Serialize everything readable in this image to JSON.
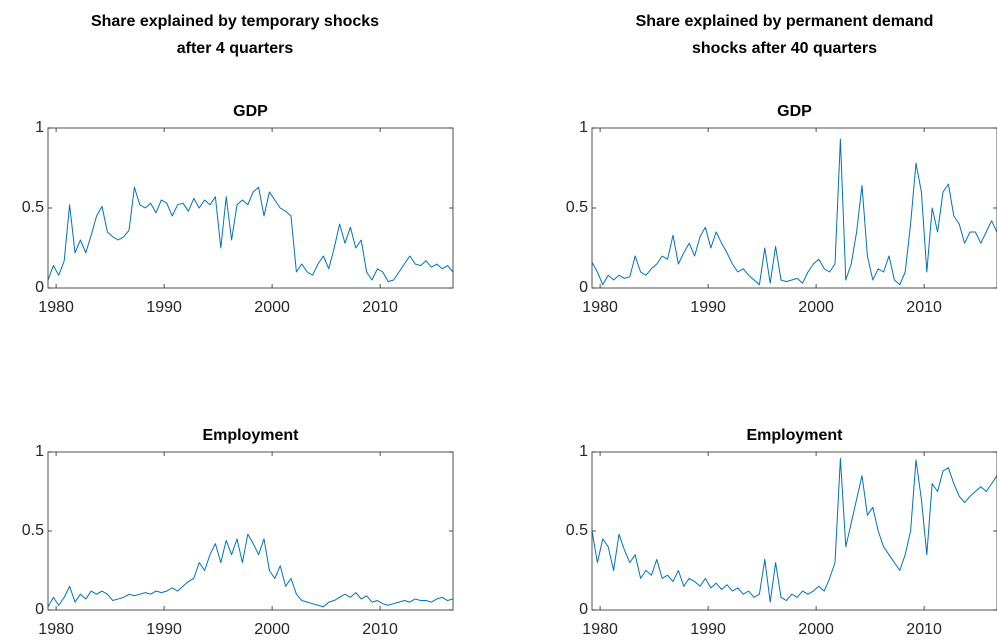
{
  "column_titles": [
    "Share explained by temporary shocks after 4 quarters",
    "Share explained by permanent demand shocks after 40 quarters"
  ],
  "chart_data": [
    {
      "type": "line",
      "title": "GDP",
      "x": [
        1979.25,
        1979.75,
        1980.25,
        1980.75,
        1981.25,
        1981.75,
        1982.25,
        1982.75,
        1983.25,
        1983.75,
        1984.25,
        1984.75,
        1985.25,
        1985.75,
        1986.25,
        1986.75,
        1987.25,
        1987.75,
        1988.25,
        1988.75,
        1989.25,
        1989.75,
        1990.25,
        1990.75,
        1991.25,
        1991.75,
        1992.25,
        1992.75,
        1993.25,
        1993.75,
        1994.25,
        1994.75,
        1995.25,
        1995.75,
        1996.25,
        1996.75,
        1997.25,
        1997.75,
        1998.25,
        1998.75,
        1999.25,
        1999.75,
        2000.25,
        2000.75,
        2001.25,
        2001.75,
        2002.25,
        2002.75,
        2003.25,
        2003.75,
        2004.25,
        2004.75,
        2005.25,
        2005.75,
        2006.25,
        2006.75,
        2007.25,
        2007.75,
        2008.25,
        2008.75,
        2009.25,
        2009.75,
        2010.25,
        2010.75,
        2011.25,
        2011.75,
        2012.25,
        2012.75,
        2013.25,
        2013.75,
        2014.25,
        2014.75,
        2015.25,
        2015.75,
        2016.25,
        2016.75
      ],
      "series": [
        {
          "color": "#0072bd",
          "values": [
            0.05,
            0.14,
            0.08,
            0.17,
            0.52,
            0.22,
            0.3,
            0.22,
            0.33,
            0.45,
            0.51,
            0.35,
            0.32,
            0.3,
            0.32,
            0.36,
            0.63,
            0.52,
            0.5,
            0.53,
            0.47,
            0.55,
            0.53,
            0.45,
            0.52,
            0.53,
            0.48,
            0.56,
            0.5,
            0.55,
            0.52,
            0.57,
            0.25,
            0.57,
            0.3,
            0.52,
            0.55,
            0.52,
            0.6,
            0.63,
            0.45,
            0.6,
            0.55,
            0.5,
            0.48,
            0.45,
            0.1,
            0.15,
            0.1,
            0.08,
            0.15,
            0.2,
            0.12,
            0.25,
            0.4,
            0.28,
            0.38,
            0.25,
            0.3,
            0.1,
            0.05,
            0.12,
            0.1,
            0.04,
            0.05,
            0.1,
            0.15,
            0.2,
            0.15,
            0.14,
            0.17,
            0.13,
            0.15,
            0.12,
            0.14,
            0.1
          ]
        }
      ],
      "xlim": [
        1979.25,
        2016.75
      ],
      "xticks": [
        1980,
        1990,
        2000,
        2010
      ],
      "ylim": [
        0,
        1
      ],
      "yticks": [
        0,
        0.5,
        1
      ]
    },
    {
      "type": "line",
      "title": "GDP",
      "x": [
        1979.25,
        1979.75,
        1980.25,
        1980.75,
        1981.25,
        1981.75,
        1982.25,
        1982.75,
        1983.25,
        1983.75,
        1984.25,
        1984.75,
        1985.25,
        1985.75,
        1986.25,
        1986.75,
        1987.25,
        1987.75,
        1988.25,
        1988.75,
        1989.25,
        1989.75,
        1990.25,
        1990.75,
        1991.25,
        1991.75,
        1992.25,
        1992.75,
        1993.25,
        1993.75,
        1994.25,
        1994.75,
        1995.25,
        1995.75,
        1996.25,
        1996.75,
        1997.25,
        1997.75,
        1998.25,
        1998.75,
        1999.25,
        1999.75,
        2000.25,
        2000.75,
        2001.25,
        2001.75,
        2002.25,
        2002.75,
        2003.25,
        2003.75,
        2004.25,
        2004.75,
        2005.25,
        2005.75,
        2006.25,
        2006.75,
        2007.25,
        2007.75,
        2008.25,
        2008.75,
        2009.25,
        2009.75,
        2010.25,
        2010.75,
        2011.25,
        2011.75,
        2012.25,
        2012.75,
        2013.25,
        2013.75,
        2014.25,
        2014.75,
        2015.25,
        2015.75,
        2016.25,
        2016.75
      ],
      "series": [
        {
          "color": "#0072bd",
          "values": [
            0.16,
            0.1,
            0.02,
            0.08,
            0.05,
            0.08,
            0.06,
            0.07,
            0.2,
            0.1,
            0.08,
            0.12,
            0.15,
            0.2,
            0.18,
            0.33,
            0.15,
            0.22,
            0.28,
            0.2,
            0.32,
            0.38,
            0.25,
            0.35,
            0.28,
            0.22,
            0.15,
            0.1,
            0.12,
            0.08,
            0.05,
            0.02,
            0.25,
            0.03,
            0.26,
            0.05,
            0.04,
            0.05,
            0.06,
            0.03,
            0.1,
            0.15,
            0.18,
            0.12,
            0.1,
            0.15,
            0.93,
            0.05,
            0.15,
            0.35,
            0.64,
            0.2,
            0.05,
            0.12,
            0.1,
            0.2,
            0.05,
            0.02,
            0.1,
            0.4,
            0.78,
            0.6,
            0.1,
            0.5,
            0.35,
            0.6,
            0.65,
            0.45,
            0.4,
            0.28,
            0.35,
            0.35,
            0.28,
            0.35,
            0.42,
            0.35
          ]
        }
      ],
      "xlim": [
        1979.25,
        2016.75
      ],
      "xticks": [
        1980,
        1990,
        2000,
        2010
      ],
      "ylim": [
        0,
        1
      ],
      "yticks": [
        0,
        0.5,
        1
      ]
    },
    {
      "type": "line",
      "title": "Employment",
      "x": [
        1979.25,
        1979.75,
        1980.25,
        1980.75,
        1981.25,
        1981.75,
        1982.25,
        1982.75,
        1983.25,
        1983.75,
        1984.25,
        1984.75,
        1985.25,
        1985.75,
        1986.25,
        1986.75,
        1987.25,
        1987.75,
        1988.25,
        1988.75,
        1989.25,
        1989.75,
        1990.25,
        1990.75,
        1991.25,
        1991.75,
        1992.25,
        1992.75,
        1993.25,
        1993.75,
        1994.25,
        1994.75,
        1995.25,
        1995.75,
        1996.25,
        1996.75,
        1997.25,
        1997.75,
        1998.25,
        1998.75,
        1999.25,
        1999.75,
        2000.25,
        2000.75,
        2001.25,
        2001.75,
        2002.25,
        2002.75,
        2003.25,
        2003.75,
        2004.25,
        2004.75,
        2005.25,
        2005.75,
        2006.25,
        2006.75,
        2007.25,
        2007.75,
        2008.25,
        2008.75,
        2009.25,
        2009.75,
        2010.25,
        2010.75,
        2011.25,
        2011.75,
        2012.25,
        2012.75,
        2013.25,
        2013.75,
        2014.25,
        2014.75,
        2015.25,
        2015.75,
        2016.25,
        2016.75
      ],
      "series": [
        {
          "color": "#0072bd",
          "values": [
            0.02,
            0.08,
            0.03,
            0.08,
            0.15,
            0.05,
            0.1,
            0.07,
            0.12,
            0.1,
            0.12,
            0.1,
            0.06,
            0.07,
            0.08,
            0.1,
            0.09,
            0.1,
            0.11,
            0.1,
            0.12,
            0.11,
            0.12,
            0.14,
            0.12,
            0.15,
            0.18,
            0.2,
            0.3,
            0.25,
            0.35,
            0.42,
            0.3,
            0.44,
            0.35,
            0.45,
            0.3,
            0.48,
            0.42,
            0.35,
            0.45,
            0.25,
            0.2,
            0.28,
            0.15,
            0.2,
            0.1,
            0.06,
            0.05,
            0.04,
            0.03,
            0.02,
            0.05,
            0.06,
            0.08,
            0.1,
            0.08,
            0.11,
            0.07,
            0.09,
            0.05,
            0.06,
            0.04,
            0.03,
            0.04,
            0.05,
            0.06,
            0.05,
            0.07,
            0.06,
            0.06,
            0.05,
            0.07,
            0.08,
            0.06,
            0.07
          ]
        }
      ],
      "xlim": [
        1979.25,
        2016.75
      ],
      "xticks": [
        1980,
        1990,
        2000,
        2010
      ],
      "ylim": [
        0,
        1
      ],
      "yticks": [
        0,
        0.5,
        1
      ]
    },
    {
      "type": "line",
      "title": "Employment",
      "x": [
        1979.25,
        1979.75,
        1980.25,
        1980.75,
        1981.25,
        1981.75,
        1982.25,
        1982.75,
        1983.25,
        1983.75,
        1984.25,
        1984.75,
        1985.25,
        1985.75,
        1986.25,
        1986.75,
        1987.25,
        1987.75,
        1988.25,
        1988.75,
        1989.25,
        1989.75,
        1990.25,
        1990.75,
        1991.25,
        1991.75,
        1992.25,
        1992.75,
        1993.25,
        1993.75,
        1994.25,
        1994.75,
        1995.25,
        1995.75,
        1996.25,
        1996.75,
        1997.25,
        1997.75,
        1998.25,
        1998.75,
        1999.25,
        1999.75,
        2000.25,
        2000.75,
        2001.25,
        2001.75,
        2002.25,
        2002.75,
        2003.25,
        2003.75,
        2004.25,
        2004.75,
        2005.25,
        2005.75,
        2006.25,
        2006.75,
        2007.25,
        2007.75,
        2008.25,
        2008.75,
        2009.25,
        2009.75,
        2010.25,
        2010.75,
        2011.25,
        2011.75,
        2012.25,
        2012.75,
        2013.25,
        2013.75,
        2014.25,
        2014.75,
        2015.25,
        2015.75,
        2016.25,
        2016.75
      ],
      "series": [
        {
          "color": "#0072bd",
          "values": [
            0.5,
            0.3,
            0.45,
            0.4,
            0.25,
            0.48,
            0.38,
            0.3,
            0.35,
            0.2,
            0.25,
            0.22,
            0.32,
            0.2,
            0.22,
            0.18,
            0.25,
            0.15,
            0.2,
            0.18,
            0.15,
            0.2,
            0.14,
            0.17,
            0.13,
            0.16,
            0.12,
            0.14,
            0.1,
            0.12,
            0.08,
            0.1,
            0.32,
            0.05,
            0.3,
            0.08,
            0.06,
            0.1,
            0.08,
            0.12,
            0.1,
            0.12,
            0.15,
            0.12,
            0.2,
            0.3,
            0.96,
            0.4,
            0.55,
            0.7,
            0.85,
            0.6,
            0.65,
            0.5,
            0.4,
            0.35,
            0.3,
            0.25,
            0.35,
            0.5,
            0.95,
            0.7,
            0.35,
            0.8,
            0.75,
            0.88,
            0.9,
            0.8,
            0.72,
            0.68,
            0.72,
            0.75,
            0.78,
            0.75,
            0.8,
            0.85
          ]
        }
      ],
      "xlim": [
        1979.25,
        2016.75
      ],
      "xticks": [
        1980,
        1990,
        2000,
        2010
      ],
      "ylim": [
        0,
        1
      ],
      "yticks": [
        0,
        0.5,
        1
      ]
    }
  ]
}
